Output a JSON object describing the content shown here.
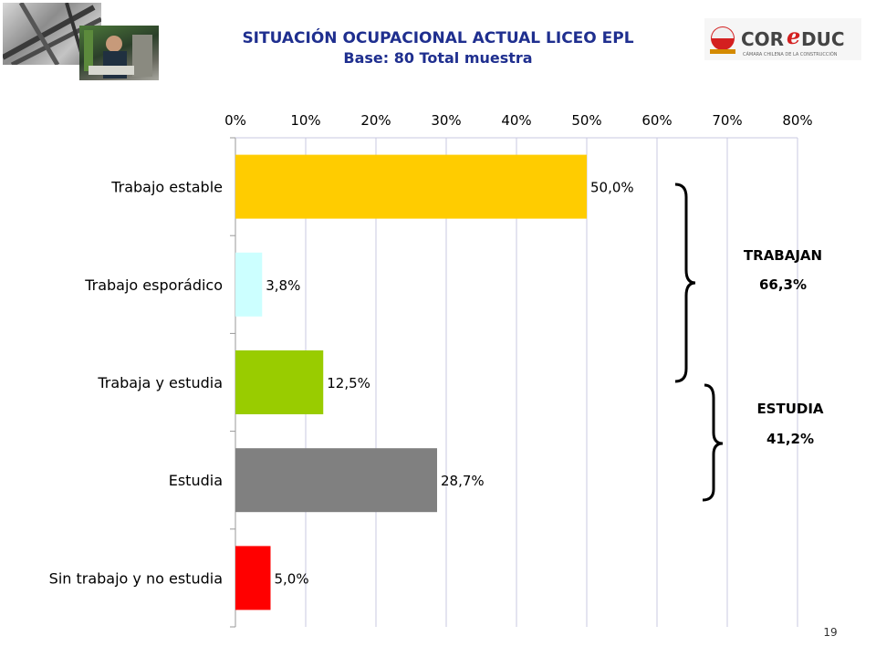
{
  "header": {
    "title": "SITUACIÓN OCUPACIONAL ACTUAL LICEO EPL",
    "subtitle": "Base:  80 Total muestra"
  },
  "logo": {
    "brand_left": "COR",
    "brand_e": "e",
    "brand_right": "DUC",
    "tagline": "CÁMARA CHILENA DE LA CONSTRUCCIÓN"
  },
  "chart_data": {
    "type": "bar",
    "orientation": "horizontal",
    "categories": [
      "Trabajo estable",
      "Trabajo esporádico",
      "Trabaja y estudia",
      "Estudia",
      "Sin trabajo y no estudia"
    ],
    "values": [
      50.0,
      3.8,
      12.5,
      28.7,
      5.0
    ],
    "data_labels": [
      "50,0%",
      "3,8%",
      "12,5%",
      "28,7%",
      "5,0%"
    ],
    "bar_colors": [
      "#ffcc00",
      "#ccffff",
      "#99cc00",
      "#808080",
      "#ff0000"
    ],
    "xlim": [
      0,
      80
    ],
    "x_ticks": [
      0,
      10,
      20,
      30,
      40,
      50,
      60,
      70,
      80
    ],
    "x_tick_labels": [
      "0%",
      "10%",
      "20%",
      "30%",
      "40%",
      "50%",
      "60%",
      "70%",
      "80%"
    ],
    "x_axis_position": "top",
    "grid": true,
    "annotations": [
      {
        "label": "TRABAJAN",
        "value": "66,3%",
        "groups": [
          "Trabajo estable",
          "Trabajo esporádico",
          "Trabaja y estudia"
        ]
      },
      {
        "label": "ESTUDIA",
        "value": "41,2%",
        "groups": [
          "Trabaja y estudia",
          "Estudia"
        ]
      }
    ]
  },
  "footer": {
    "page_number": "19"
  }
}
